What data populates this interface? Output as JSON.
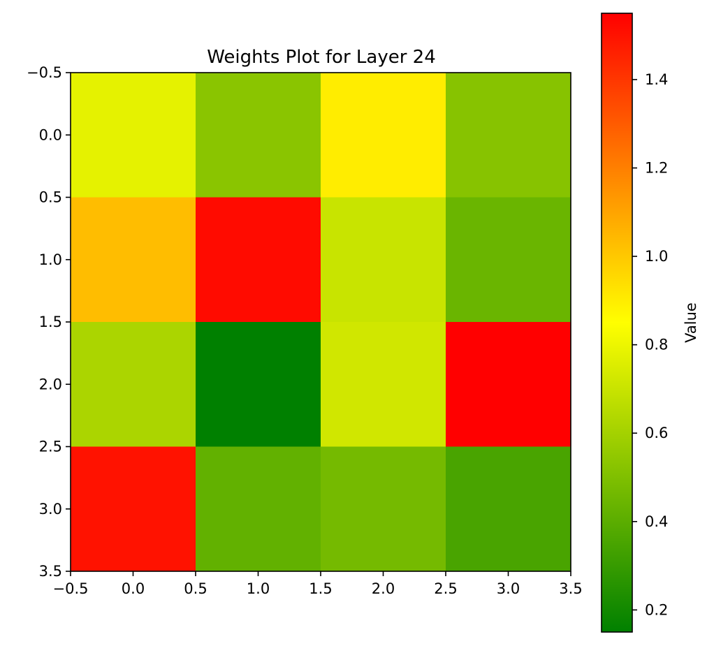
{
  "chart_data": {
    "type": "heatmap",
    "title": "Weights Plot for Layer 24",
    "xlabel": "",
    "ylabel": "",
    "xlim": [
      -0.5,
      3.5
    ],
    "ylim": [
      3.5,
      -0.5
    ],
    "xticks": [
      "−0.5",
      "0.0",
      "0.5",
      "1.0",
      "1.5",
      "2.0",
      "2.5",
      "3.0",
      "3.5"
    ],
    "yticks": [
      "−0.5",
      "0.0",
      "0.5",
      "1.0",
      "1.5",
      "2.0",
      "2.5",
      "3.0",
      "3.5"
    ],
    "xtick_values": [
      -0.5,
      0,
      0.5,
      1,
      1.5,
      2,
      2.5,
      3,
      3.5
    ],
    "ytick_values": [
      -0.5,
      0,
      0.5,
      1,
      1.5,
      2,
      2.5,
      3,
      3.5
    ],
    "values": [
      [
        0.78,
        0.53,
        0.9,
        0.52
      ],
      [
        1.03,
        1.52,
        0.7,
        0.44
      ],
      [
        0.62,
        0.15,
        0.72,
        1.55
      ],
      [
        1.5,
        0.42,
        0.47,
        0.35
      ]
    ],
    "colorbar": {
      "label": "Value",
      "min": 0.15,
      "max": 1.55,
      "ticks": [
        "0.2",
        "0.4",
        "0.6",
        "0.8",
        "1.0",
        "1.2",
        "1.4"
      ],
      "tick_values": [
        0.2,
        0.4,
        0.6,
        0.8,
        1.0,
        1.2,
        1.4
      ],
      "colors": [
        "#008000",
        "#ffff00",
        "#ff0000"
      ]
    },
    "grid": false
  }
}
